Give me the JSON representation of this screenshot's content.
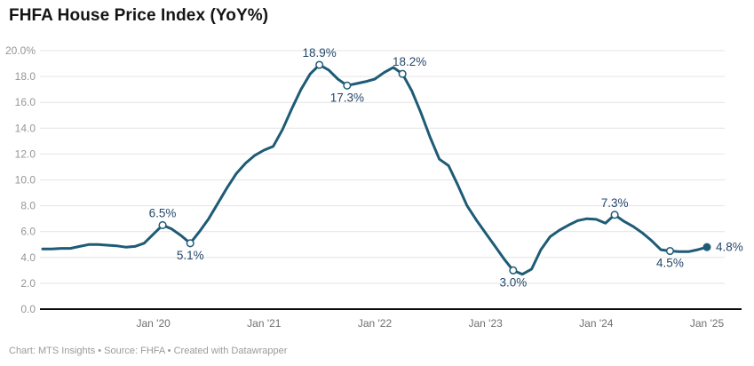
{
  "header": {
    "title": "FHFA House Price Index (YoY%)"
  },
  "footer": {
    "text": "Chart: MTS Insights • Source: FHFA • Created with Datawrapper"
  },
  "colors": {
    "line": "#1e5b76",
    "value_label": "#25486b",
    "marker_fill": "#ffffff",
    "grid": "#e4e4e4",
    "baseline": "#0a0a0a",
    "y_axis_text": "#969696",
    "x_axis_text": "#6f6f6f",
    "title_text": "#141414",
    "footer_text": "#9b9b9b",
    "background": "#ffffff"
  },
  "chart_data": {
    "type": "line",
    "title": "FHFA House Price Index (YoY%)",
    "x_interval": "monthly",
    "x_start": "2019-01",
    "x_end": "2025-01",
    "ylim": [
      0,
      20
    ],
    "grid": true,
    "legend": "none",
    "values": [
      4.65,
      4.65,
      4.7,
      4.7,
      4.85,
      5.0,
      5.0,
      4.95,
      4.9,
      4.8,
      4.85,
      5.1,
      5.8,
      6.5,
      6.2,
      5.7,
      5.1,
      6.0,
      7.0,
      8.2,
      9.4,
      10.5,
      11.3,
      11.9,
      12.3,
      12.6,
      13.9,
      15.5,
      17.0,
      18.2,
      18.9,
      18.5,
      17.8,
      17.3,
      17.45,
      17.6,
      17.8,
      18.3,
      18.7,
      18.2,
      16.9,
      15.2,
      13.3,
      11.6,
      11.1,
      9.6,
      8.0,
      6.9,
      5.9,
      4.9,
      3.9,
      3.0,
      2.7,
      3.1,
      4.6,
      5.6,
      6.1,
      6.5,
      6.85,
      7.0,
      6.95,
      6.65,
      7.3,
      6.8,
      6.4,
      5.9,
      5.3,
      4.6,
      4.5,
      4.45,
      4.45,
      4.6,
      4.8
    ],
    "y_axis": {
      "ticks": [
        {
          "value": 20,
          "label": "20.0%"
        },
        {
          "value": 18,
          "label": "18.0"
        },
        {
          "value": 16,
          "label": "16.0"
        },
        {
          "value": 14,
          "label": "14.0"
        },
        {
          "value": 12,
          "label": "12.0"
        },
        {
          "value": 10,
          "label": "10.0"
        },
        {
          "value": 8,
          "label": "8.0"
        },
        {
          "value": 6,
          "label": "6.0"
        },
        {
          "value": 4,
          "label": "4.0"
        },
        {
          "value": 2,
          "label": "2.0"
        },
        {
          "value": 0,
          "label": "0.0"
        }
      ]
    },
    "x_axis": {
      "ticks": [
        {
          "index": 12,
          "label": "Jan '20"
        },
        {
          "index": 24,
          "label": "Jan '21"
        },
        {
          "index": 36,
          "label": "Jan '22"
        },
        {
          "index": 48,
          "label": "Jan '23"
        },
        {
          "index": 60,
          "label": "Jan '24"
        },
        {
          "index": 72,
          "label": "Jan '25"
        }
      ]
    },
    "annotations": [
      {
        "index": 13,
        "label": "6.5%",
        "placement": "above",
        "marker": "open"
      },
      {
        "index": 16,
        "label": "5.1%",
        "placement": "below",
        "marker": "open"
      },
      {
        "index": 30,
        "label": "18.9%",
        "placement": "above",
        "marker": "open"
      },
      {
        "index": 33,
        "label": "17.3%",
        "placement": "below",
        "marker": "open"
      },
      {
        "index": 39,
        "label": "18.2%",
        "placement": "above",
        "dx": 8,
        "marker": "open"
      },
      {
        "index": 51,
        "label": "3.0%",
        "placement": "below",
        "marker": "open"
      },
      {
        "index": 62,
        "label": "7.3%",
        "placement": "above",
        "marker": "open"
      },
      {
        "index": 68,
        "label": "4.5%",
        "placement": "below",
        "marker": "open"
      },
      {
        "index": 72,
        "label": "4.8%",
        "placement": "right",
        "marker": "filled"
      }
    ]
  }
}
